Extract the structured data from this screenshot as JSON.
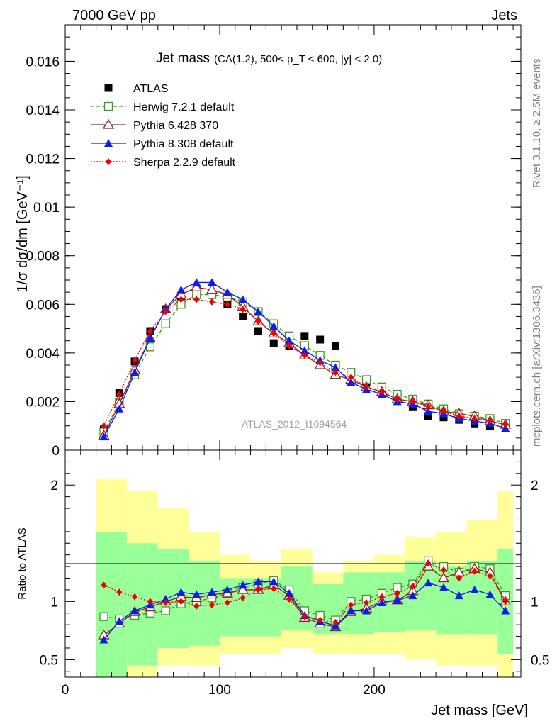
{
  "header": {
    "left": "7000 GeV pp",
    "right": "Jets"
  },
  "side_labels": {
    "rivet": "Rivet 3.1.10, ≥ 2.5M events",
    "mcplots": "mcplots.cern.ch [arXiv:1306.3436]"
  },
  "watermark": "ATLAS_2012_I1094564",
  "colors": {
    "atlas": "#000000",
    "herwig": "#3a9a1a",
    "pythia6": "#9a1a1a",
    "pythia8": "#0a1ee6",
    "sherpa": "#ee0000",
    "band_inner": "#99ff99",
    "band_outer": "#ffff99"
  },
  "chart_data": [
    {
      "type": "line",
      "title": "Jet mass",
      "subtitle": "(CA(1.2), 500< p_T < 600, |y| < 2.0)",
      "ylabel": "1/σ dσ/dm [GeV⁻¹]",
      "xlim": [
        0,
        295
      ],
      "ylim": [
        0,
        0.0175
      ],
      "yticks": [
        "0",
        "0.002",
        "0.004",
        "0.006",
        "0.008",
        "0.01",
        "0.012",
        "0.014",
        "0.016"
      ],
      "x": [
        25,
        35,
        45,
        55,
        65,
        75,
        85,
        95,
        105,
        115,
        125,
        135,
        145,
        155,
        165,
        175,
        185,
        195,
        205,
        215,
        225,
        235,
        245,
        255,
        265,
        275,
        285
      ],
      "legend_position": "top-left",
      "series": [
        {
          "name": "ATLAS",
          "marker": "square",
          "values": [
            0.00085,
            0.00235,
            0.00365,
            0.0049,
            0.0058,
            0.0062,
            0.0066,
            0.0064,
            0.006,
            0.0055,
            0.0049,
            0.0044,
            0.0043,
            0.0047,
            0.00455,
            0.0043,
            0.0032,
            0.0028,
            0.0024,
            0.0021,
            0.0018,
            0.0014,
            0.00135,
            0.00125,
            0.0011,
            0.001,
            0.00105
          ]
        },
        {
          "name": "Herwig 7.2.1 default",
          "marker": "open-square",
          "values": [
            0.00075,
            0.00195,
            0.0031,
            0.00425,
            0.0052,
            0.006,
            0.0064,
            0.0064,
            0.0063,
            0.0061,
            0.0057,
            0.0052,
            0.0047,
            0.0043,
            0.0039,
            0.0035,
            0.0032,
            0.0029,
            0.0026,
            0.0023,
            0.0021,
            0.0019,
            0.0017,
            0.0015,
            0.0014,
            0.0013,
            0.0011
          ]
        },
        {
          "name": "Pythia 6.428 370",
          "marker": "open-triangle",
          "values": [
            0.0006,
            0.0019,
            0.0033,
            0.0046,
            0.0058,
            0.0064,
            0.0067,
            0.0066,
            0.0064,
            0.0059,
            0.0053,
            0.0048,
            0.0044,
            0.0039,
            0.0035,
            0.0031,
            0.0029,
            0.0026,
            0.0024,
            0.0021,
            0.002,
            0.00185,
            0.0016,
            0.0015,
            0.0014,
            0.0012,
            0.00105
          ]
        },
        {
          "name": "Pythia 8.308 default",
          "marker": "triangle",
          "values": [
            0.00055,
            0.0017,
            0.0032,
            0.0046,
            0.0058,
            0.0066,
            0.0069,
            0.0069,
            0.0065,
            0.0062,
            0.0057,
            0.0051,
            0.0045,
            0.0041,
            0.0037,
            0.0034,
            0.0028,
            0.0025,
            0.0023,
            0.002,
            0.0019,
            0.0016,
            0.0015,
            0.0013,
            0.0012,
            0.0011,
            0.0009
          ]
        },
        {
          "name": "Sherpa 2.2.9 default",
          "marker": "diamond",
          "values": [
            0.001,
            0.0023,
            0.0037,
            0.0049,
            0.0057,
            0.0062,
            0.0062,
            0.0061,
            0.006,
            0.0058,
            0.0053,
            0.0048,
            0.0043,
            0.0039,
            0.0036,
            0.0032,
            0.003,
            0.0026,
            0.0024,
            0.0021,
            0.002,
            0.0018,
            0.0016,
            0.0014,
            0.0013,
            0.0012,
            0.00105
          ]
        }
      ]
    },
    {
      "type": "line",
      "ylabel": "Ratio to ATLAS",
      "xlabel": "Jet mass [GeV]",
      "xlim": [
        0,
        295
      ],
      "ylim": [
        0.35,
        2.3
      ],
      "yticks": [
        "0.5",
        "1",
        "2"
      ],
      "xticks": [
        "0",
        "100",
        "200"
      ],
      "bands": {
        "edges": [
          20,
          40,
          60,
          80,
          100,
          120,
          140,
          160,
          180,
          200,
          220,
          240,
          260,
          280,
          290
        ],
        "inner_low": [
          0.35,
          0.45,
          0.6,
          0.62,
          0.7,
          0.7,
          0.75,
          0.72,
          0.72,
          0.74,
          0.75,
          0.72,
          0.72,
          0.55,
          0.62
        ],
        "inner_high": [
          1.6,
          1.5,
          1.45,
          1.35,
          1.2,
          1.2,
          1.3,
          1.15,
          1.25,
          1.25,
          1.35,
          1.3,
          1.35,
          1.45,
          1.4
        ],
        "outer_low": [
          0.35,
          0.35,
          0.45,
          0.45,
          0.55,
          0.55,
          0.6,
          0.55,
          0.55,
          0.55,
          0.5,
          0.45,
          0.45,
          0.35,
          0.4
        ],
        "outer_high": [
          2.05,
          1.95,
          1.8,
          1.6,
          1.4,
          1.35,
          1.45,
          1.25,
          1.35,
          1.4,
          1.55,
          1.6,
          1.7,
          1.95,
          1.85
        ]
      },
      "series": [
        {
          "name": "Herwig 7.2.1 default",
          "marker": "open-square",
          "values": [
            0.87,
            0.85,
            0.88,
            0.9,
            0.92,
            0.98,
            1.0,
            1.03,
            1.07,
            1.12,
            1.15,
            1.18,
            1.1,
            0.92,
            0.88,
            0.84,
            1.0,
            1.02,
            1.07,
            1.12,
            1.15,
            1.35,
            1.3,
            1.25,
            1.3,
            1.28,
            1.05
          ]
        },
        {
          "name": "Pythia 6.428 370",
          "marker": "open-triangle",
          "values": [
            0.71,
            0.81,
            0.91,
            0.95,
            1.0,
            1.04,
            1.03,
            1.06,
            1.07,
            1.1,
            1.1,
            1.14,
            1.05,
            0.86,
            0.81,
            0.78,
            0.91,
            0.94,
            1.0,
            1.01,
            1.09,
            1.3,
            1.2,
            1.25,
            1.28,
            1.25,
            1.0
          ]
        },
        {
          "name": "Pythia 8.308 default",
          "marker": "triangle",
          "values": [
            0.67,
            0.83,
            0.92,
            0.97,
            1.02,
            1.08,
            1.06,
            1.08,
            1.1,
            1.14,
            1.17,
            1.17,
            1.07,
            0.88,
            0.83,
            0.79,
            0.92,
            0.92,
            0.99,
            1.01,
            1.05,
            1.16,
            1.12,
            1.05,
            1.1,
            1.06,
            0.92
          ]
        },
        {
          "name": "Sherpa 2.2.9 default",
          "marker": "diamond",
          "values": [
            1.14,
            1.08,
            1.04,
            1.0,
            0.99,
            1.0,
            0.96,
            0.97,
            0.99,
            1.03,
            1.1,
            1.11,
            1.02,
            0.87,
            0.84,
            0.82,
            0.97,
            0.99,
            1.04,
            1.07,
            1.13,
            1.33,
            1.27,
            1.2,
            1.26,
            1.22,
            1.0
          ]
        }
      ]
    }
  ]
}
